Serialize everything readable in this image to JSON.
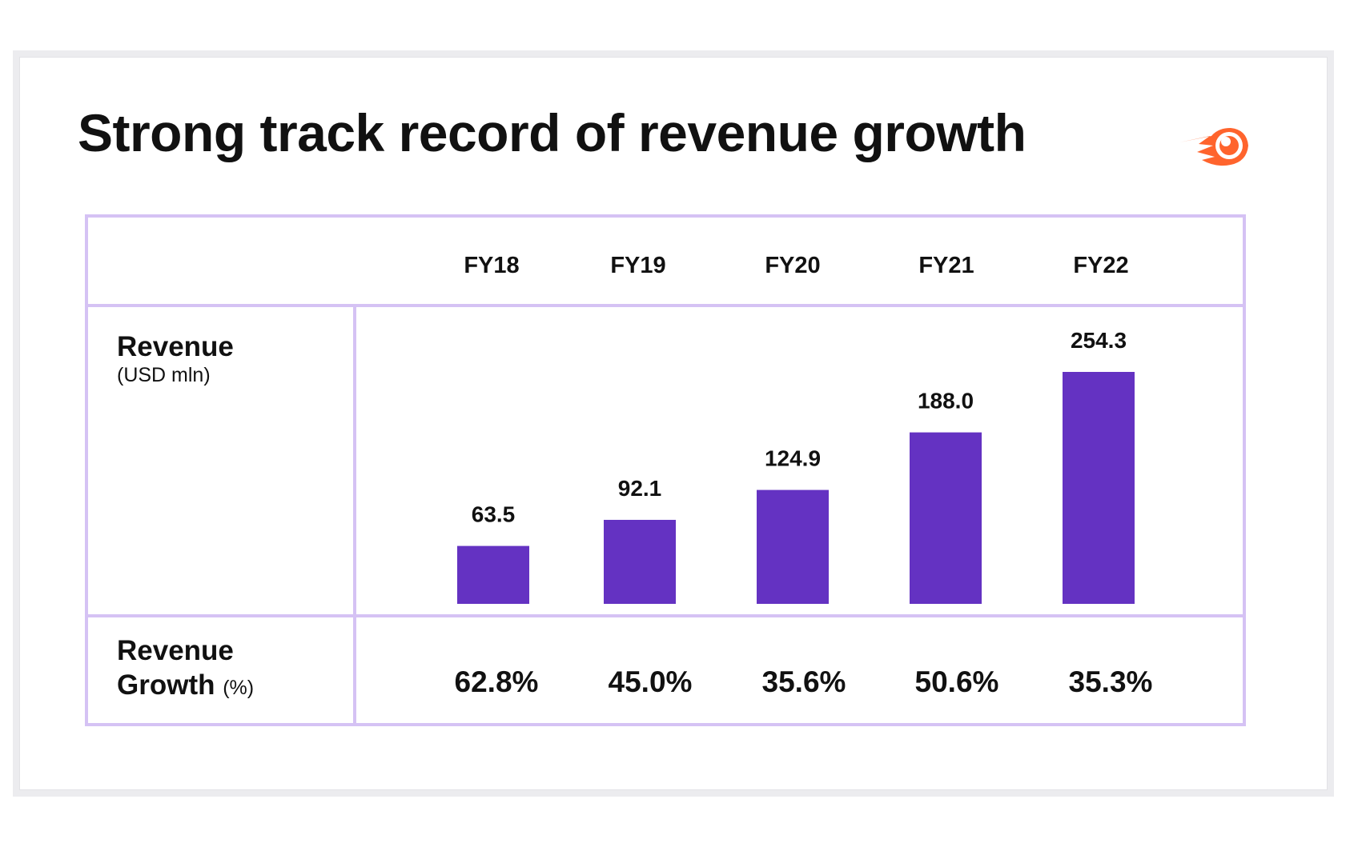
{
  "slide": {
    "title": "Strong track record of revenue growth",
    "logo_icon": "semrush-comet-icon",
    "logo_color": "#ff642d"
  },
  "table": {
    "border_color": "#d5c2f4",
    "row_revenue_label": "Revenue",
    "row_revenue_unit": "(USD mln)",
    "row_growth_label_line1": "Revenue",
    "row_growth_label_line2": "Growth",
    "row_growth_unit": "(%)",
    "growth": [
      "62.8%",
      "45.0%",
      "35.6%",
      "50.6%",
      "35.3%"
    ]
  },
  "chart_data": {
    "type": "bar",
    "categories": [
      "FY18",
      "FY19",
      "FY20",
      "FY21",
      "FY22"
    ],
    "values": [
      63.5,
      92.1,
      124.9,
      188.0,
      254.3
    ],
    "value_labels": [
      "63.5",
      "92.1",
      "124.9",
      "188.0",
      "254.3"
    ],
    "title": "Revenue",
    "ylabel": "(USD mln)",
    "ylim": [
      0,
      254.3
    ],
    "bar_color": "#6432c2",
    "grid": false,
    "legend": "none"
  }
}
